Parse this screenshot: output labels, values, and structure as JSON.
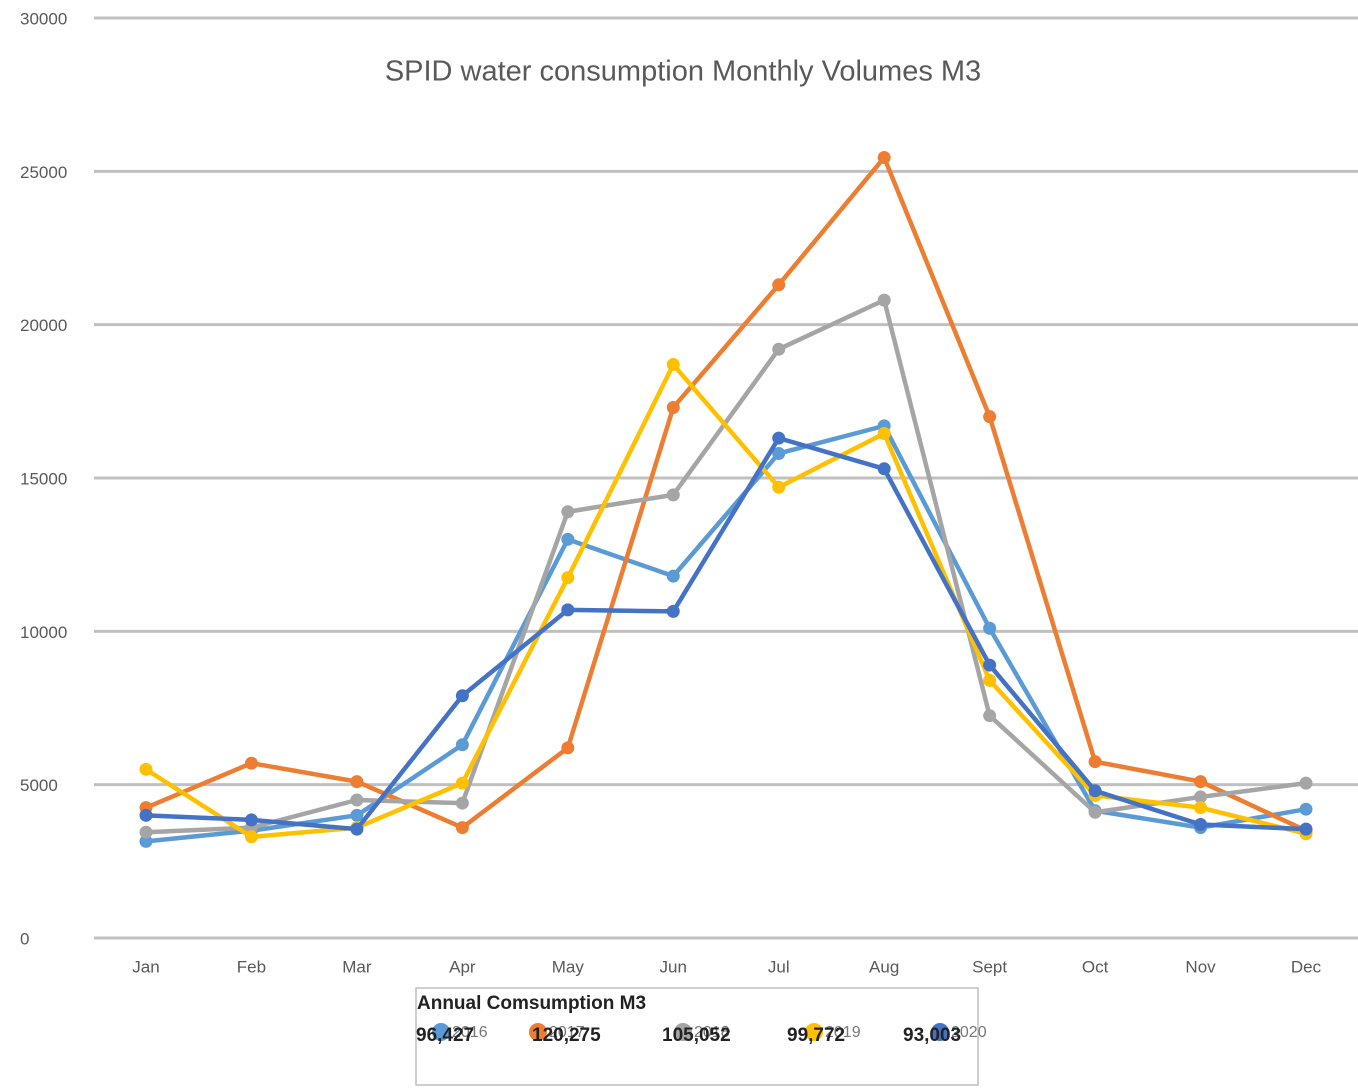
{
  "chart_data": {
    "type": "line",
    "title": "SPID water consumption Monthly Volumes M3",
    "categories": [
      "Jan",
      "Feb",
      "Mar",
      "Apr",
      "May",
      "Jun",
      "Jul",
      "Aug",
      "Sept",
      "Oct",
      "Nov",
      "Dec"
    ],
    "ylim": [
      0,
      30000
    ],
    "yticks": [
      0,
      5000,
      10000,
      15000,
      20000,
      25000,
      30000
    ],
    "grid": true,
    "legend_title": "Annual Comsumption M3",
    "series": [
      {
        "name": "2016",
        "color": "#5b9bd5",
        "total_label": "96,427",
        "values": [
          3150,
          3500,
          4000,
          6300,
          13000,
          11800,
          15800,
          16700,
          10100,
          4150,
          3600,
          4200
        ]
      },
      {
        "name": "2017",
        "color": "#ed7d31",
        "total_label": "120,275",
        "values": [
          4250,
          5700,
          5100,
          3600,
          6200,
          17300,
          21300,
          25450,
          17000,
          5750,
          5100,
          3500
        ]
      },
      {
        "name": "2018",
        "color": "#a5a5a5",
        "total_label": "105,052",
        "values": [
          3450,
          3600,
          4500,
          4400,
          13900,
          14450,
          19200,
          20800,
          7250,
          4100,
          4600,
          5050
        ]
      },
      {
        "name": "2019",
        "color": "#ffc000",
        "total_label": "99,772",
        "values": [
          5500,
          3300,
          3600,
          5050,
          11750,
          18700,
          14700,
          16450,
          8400,
          4650,
          4250,
          3400
        ]
      },
      {
        "name": "2020",
        "color": "#4472c4",
        "total_label": "93,003",
        "values": [
          4000,
          3850,
          3550,
          7900,
          10700,
          10650,
          16300,
          15300,
          8900,
          4800,
          3700,
          3550
        ]
      }
    ]
  }
}
